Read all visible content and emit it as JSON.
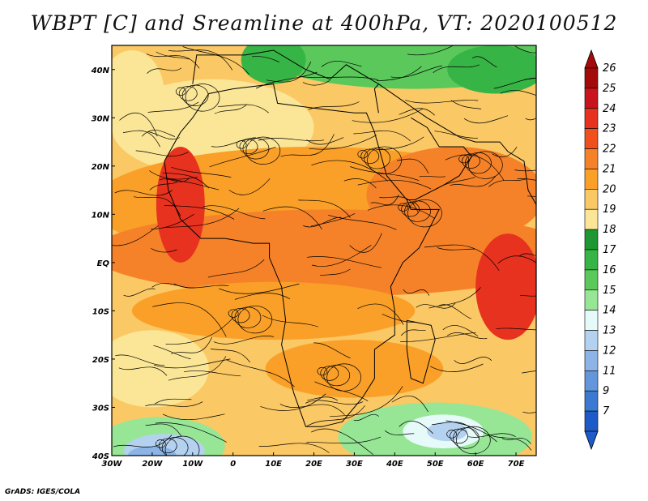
{
  "title": "WBPT [C] and Sreamline at 400hPa, VT: 2020100512",
  "footer": "GrADS: IGES/COLA",
  "map": {
    "lon_range": [
      -30,
      75
    ],
    "lat_range": [
      -40,
      45
    ],
    "x_ticks": [
      {
        "value": -30,
        "label": "30W"
      },
      {
        "value": -20,
        "label": "20W"
      },
      {
        "value": -10,
        "label": "10W"
      },
      {
        "value": 0,
        "label": "0"
      },
      {
        "value": 10,
        "label": "10E"
      },
      {
        "value": 20,
        "label": "20E"
      },
      {
        "value": 30,
        "label": "30E"
      },
      {
        "value": 40,
        "label": "40E"
      },
      {
        "value": 50,
        "label": "50E"
      },
      {
        "value": 60,
        "label": "60E"
      },
      {
        "value": 70,
        "label": "70E"
      }
    ],
    "y_ticks": [
      {
        "value": 40,
        "label": "40N"
      },
      {
        "value": 30,
        "label": "30N"
      },
      {
        "value": 20,
        "label": "20N"
      },
      {
        "value": 10,
        "label": "10N"
      },
      {
        "value": 0,
        "label": "EQ"
      },
      {
        "value": -10,
        "label": "10S"
      },
      {
        "value": -20,
        "label": "20S"
      },
      {
        "value": -30,
        "label": "30S"
      },
      {
        "value": -40,
        "label": "40S"
      }
    ]
  },
  "colorbar": {
    "levels": [
      "26",
      "25",
      "24",
      "23",
      "22",
      "21",
      "20",
      "19",
      "18",
      "17",
      "16",
      "15",
      "14",
      "13",
      "12",
      "11",
      "9",
      "7"
    ],
    "colors": [
      "#a50a0a",
      "#c8141e",
      "#e6321e",
      "#f0501e",
      "#f58228",
      "#faa028",
      "#fac864",
      "#fae696",
      "#1e9632",
      "#37b446",
      "#5ac85a",
      "#96e696",
      "#e6fafa",
      "#b4d2f0",
      "#8cb4e6",
      "#6496dc",
      "#3c7ad2",
      "#1e5ac8"
    ]
  },
  "field_colors": {
    "very_hot": "#e6321e",
    "hot": "#f58228",
    "warm": "#faa028",
    "mild": "#fac864",
    "pale": "#fae696",
    "green_dark": "#37b446",
    "green": "#5ac85a",
    "green_light": "#96e696",
    "cyan": "#e6fafa",
    "blue_light": "#b4d2f0",
    "blue": "#8cb4e6"
  }
}
